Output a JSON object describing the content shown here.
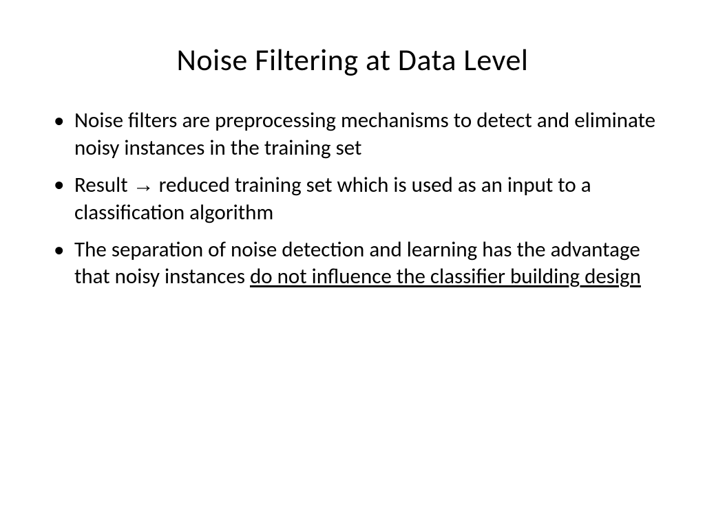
{
  "slide": {
    "title": "Noise Filtering at Data Level",
    "background_color": "#ffffff",
    "text_color": "#000000",
    "title_fontsize": 44,
    "body_fontsize": 31,
    "font_family": "Calibri",
    "bullets": [
      {
        "text": "Noise filters are preprocessing mechanisms to detect and eliminate noisy instances in the training set"
      },
      {
        "prefix": "Result ",
        "arrow": "→",
        "suffix": " reduced training set which is used as an input to a classification algorithm"
      },
      {
        "prefix": "The separation of noise detection and learning has the advantage that noisy instances ",
        "underlined": "do not influence the classifier building design"
      }
    ]
  }
}
